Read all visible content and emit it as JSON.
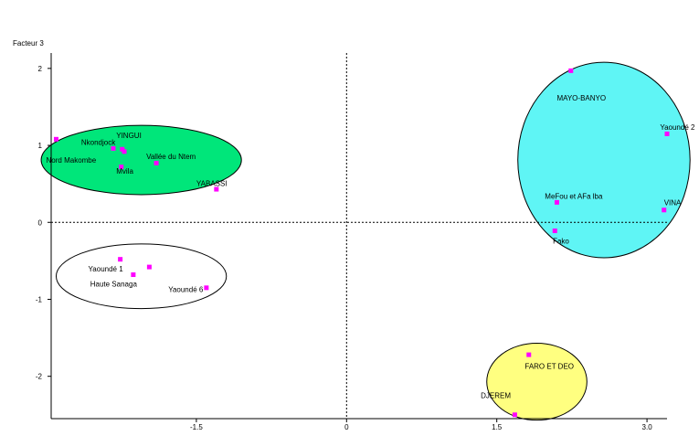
{
  "chart_data": {
    "type": "scatter",
    "title": "",
    "xlabel": "",
    "ylabel": "Facteur 3",
    "xlim": [
      -2.95,
      3.2
    ],
    "ylim": [
      -2.55,
      2.2
    ],
    "grid": false,
    "x_ticks": [
      {
        "value": -1.5,
        "label": "-1.5"
      },
      {
        "value": 0,
        "label": "0"
      },
      {
        "value": 1.5,
        "label": "1.5"
      },
      {
        "value": 3.0,
        "label": "3.0"
      }
    ],
    "y_ticks": [
      {
        "value": 2,
        "label": "2"
      },
      {
        "value": 1,
        "label": "1"
      },
      {
        "value": 0,
        "label": "0"
      },
      {
        "value": -1,
        "label": "-1"
      },
      {
        "value": -2,
        "label": "-2"
      }
    ],
    "points": [
      {
        "x": 2.24,
        "y": 1.97,
        "label": "MAYO-BANYO",
        "lx": 2.1,
        "ly": 1.62
      },
      {
        "x": 3.2,
        "y": 1.15,
        "label": "Yaoundé 2",
        "lx": 3.13,
        "ly": 1.24
      },
      {
        "x": 2.1,
        "y": 0.26,
        "label": "MeFou et AFa lba",
        "lx": 1.98,
        "ly": 0.34
      },
      {
        "x": 3.17,
        "y": 0.16,
        "label": "VINA",
        "lx": 3.17,
        "ly": 0.26
      },
      {
        "x": 2.08,
        "y": -0.11,
        "label": "Fako",
        "lx": 2.06,
        "ly": -0.24
      },
      {
        "x": -2.9,
        "y": 1.08,
        "label": "Nord Makombe",
        "lx": -3.0,
        "ly": 0.81
      },
      {
        "x": -2.33,
        "y": 0.96,
        "label": "Nkondjock",
        "lx": -2.65,
        "ly": 1.04
      },
      {
        "x": -2.24,
        "y": 0.95,
        "label": "YINGUI",
        "lx": -2.3,
        "ly": 1.13
      },
      {
        "x": -2.22,
        "y": 0.92,
        "label": "",
        "lx": 0,
        "ly": 0
      },
      {
        "x": -1.9,
        "y": 0.77,
        "label": "Vallée du Ntem",
        "lx": -2.0,
        "ly": 0.86
      },
      {
        "x": -2.25,
        "y": 0.72,
        "label": "Mvila",
        "lx": -2.3,
        "ly": 0.67
      },
      {
        "x": -1.3,
        "y": 0.43,
        "label": "YABASSI",
        "lx": -1.5,
        "ly": 0.51
      },
      {
        "x": -2.26,
        "y": -0.48,
        "label": "Yaoundé 1",
        "lx": -2.58,
        "ly": -0.6
      },
      {
        "x": -1.97,
        "y": -0.58,
        "label": "",
        "lx": 0,
        "ly": 0
      },
      {
        "x": -2.13,
        "y": -0.68,
        "label": "Haute Sanaga",
        "lx": -2.56,
        "ly": -0.8
      },
      {
        "x": -1.4,
        "y": -0.85,
        "label": "Yaoundé 6",
        "lx": -1.78,
        "ly": -0.87
      },
      {
        "x": 1.82,
        "y": -1.72,
        "label": "FARO ET DEO",
        "lx": 1.78,
        "ly": -1.87
      },
      {
        "x": 1.68,
        "y": -2.5,
        "label": "DJEREM",
        "lx": 1.34,
        "ly": -2.25
      }
    ],
    "groups": [
      {
        "name": "cyan",
        "color": "#5ff5f5",
        "cx": 2.57,
        "cy": 0.81,
        "rx": 0.86,
        "ry": 1.27
      },
      {
        "name": "green",
        "color": "#00e67a",
        "cx": -2.05,
        "cy": 0.81,
        "rx": 1.0,
        "ry": 0.45
      },
      {
        "name": "white",
        "color": "#ffffff",
        "cx": -2.05,
        "cy": -0.7,
        "rx": 0.85,
        "ry": 0.42
      },
      {
        "name": "yellow",
        "color": "#ffff80",
        "cx": 1.9,
        "cy": -2.07,
        "rx": 0.5,
        "ry": 0.5
      }
    ],
    "marker_color": "#ff00ff"
  }
}
